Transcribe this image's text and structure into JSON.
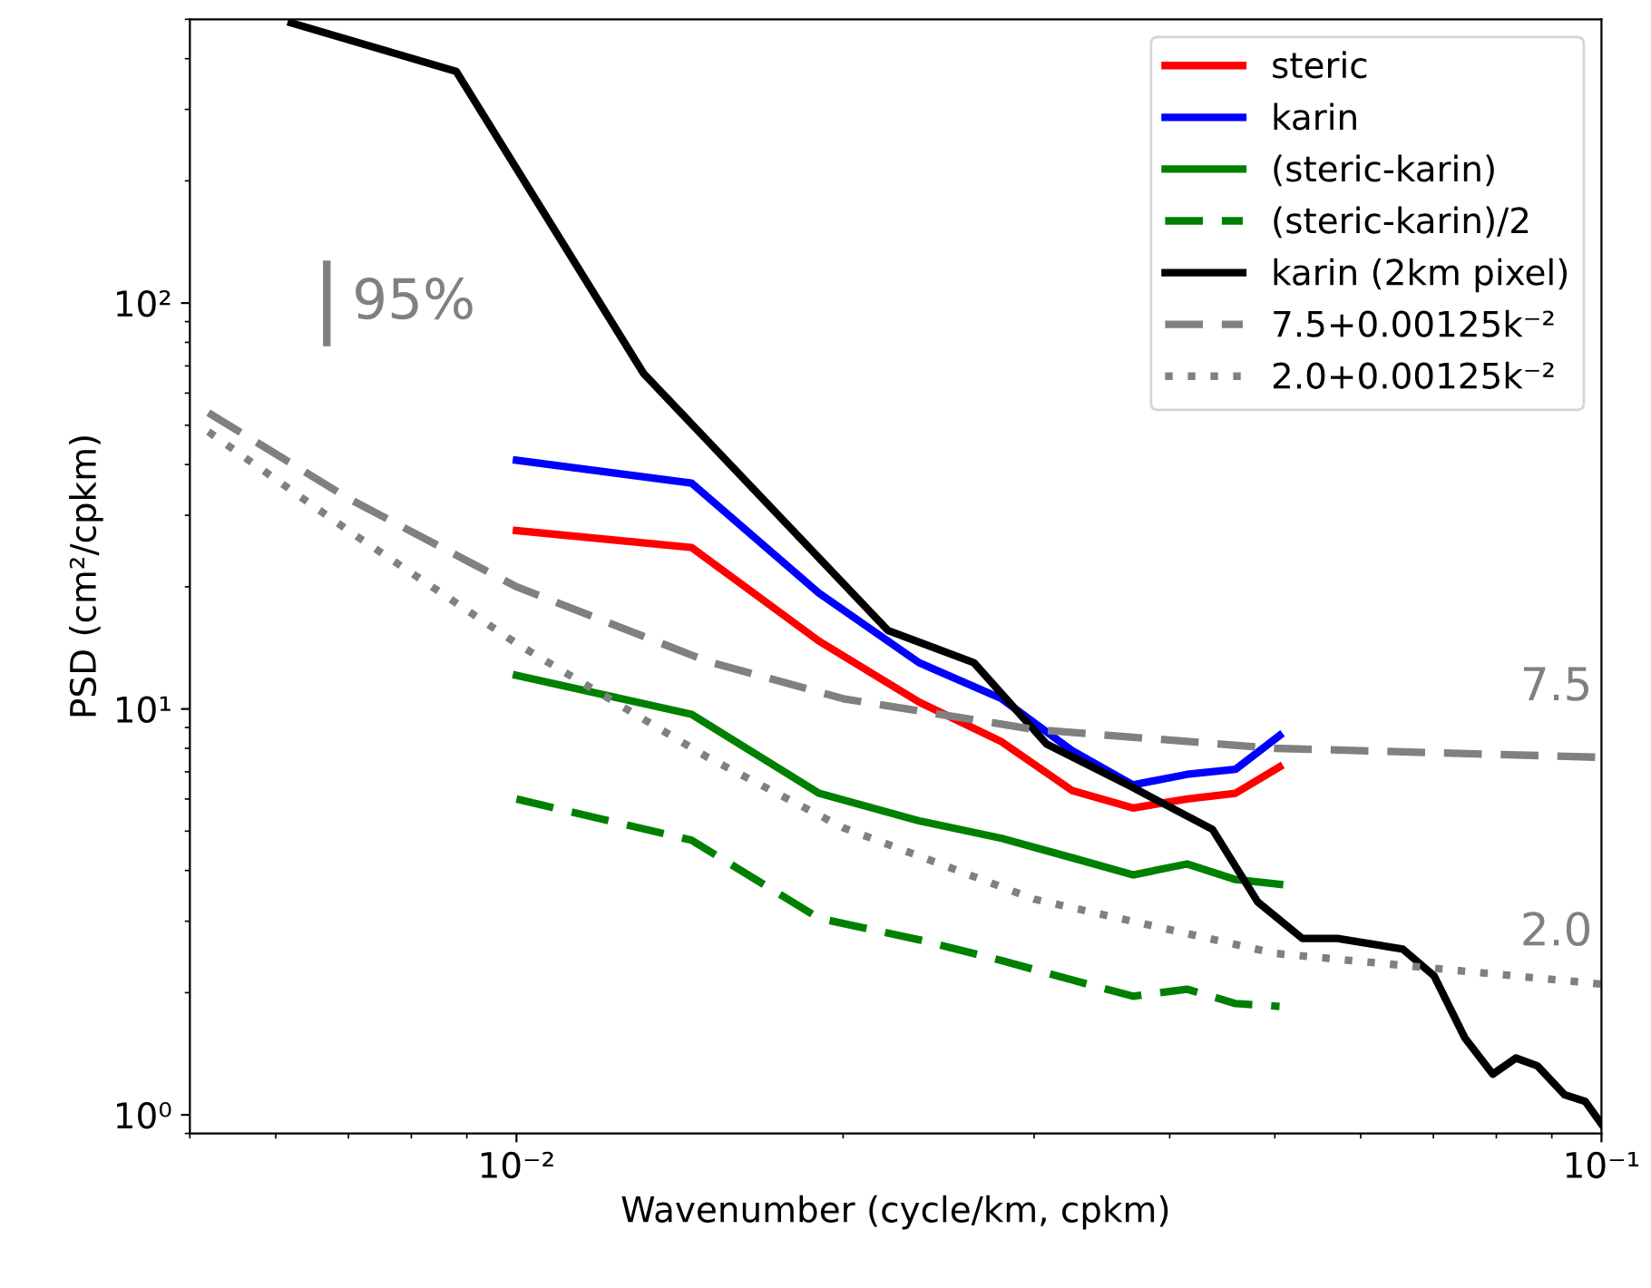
{
  "chart_data": {
    "type": "line",
    "xlabel": "Wavenumber (cycle/km, cpkm)",
    "ylabel": "PSD (cm²/cpkm)",
    "log": "xy",
    "xlim": [
      0.005,
      0.1
    ],
    "ylim": [
      0.9,
      500
    ],
    "xticks": [
      {
        "value": 0.01,
        "label": "10⁻²"
      },
      {
        "value": 0.1,
        "label": "10⁻¹"
      }
    ],
    "yticks": [
      {
        "value": 1,
        "label": "10⁰"
      },
      {
        "value": 10,
        "label": "10¹"
      },
      {
        "value": 100,
        "label": "10²"
      }
    ],
    "grid": false,
    "legend": "top right",
    "marker": "none",
    "series": [
      {
        "name": "steric",
        "color": "#ff0000",
        "line_style": "solid",
        "x": [
          0.01,
          0.0145,
          0.019,
          0.0235,
          0.028,
          0.0325,
          0.037,
          0.0415,
          0.046,
          0.0505
        ],
        "values": [
          27.5,
          25,
          14.7,
          10.4,
          8.3,
          6.3,
          5.7,
          6.0,
          6.2,
          7.2
        ]
      },
      {
        "name": "karin",
        "color": "#0000ff",
        "line_style": "solid",
        "x": [
          0.01,
          0.0145,
          0.019,
          0.0235,
          0.028,
          0.0325,
          0.037,
          0.0415,
          0.046,
          0.0505
        ],
        "values": [
          41,
          36,
          19.3,
          13,
          10.6,
          7.9,
          6.5,
          6.9,
          7.1,
          8.6
        ]
      },
      {
        "name": "(steric-karin)",
        "color": "#008000",
        "line_style": "solid",
        "x": [
          0.01,
          0.0145,
          0.019,
          0.0235,
          0.028,
          0.0325,
          0.037,
          0.0415,
          0.046,
          0.0505
        ],
        "values": [
          12.1,
          9.7,
          6.2,
          5.3,
          4.8,
          4.3,
          3.9,
          4.15,
          3.8,
          3.7
        ]
      },
      {
        "name": "(steric-karin)/2",
        "color": "#008000",
        "line_style": "dashed",
        "x": [
          0.01,
          0.0145,
          0.019,
          0.0235,
          0.028,
          0.0325,
          0.037,
          0.0415,
          0.046,
          0.0505
        ],
        "values": [
          6.0,
          4.75,
          3.05,
          2.7,
          2.4,
          2.15,
          1.96,
          2.04,
          1.88,
          1.85
        ]
      },
      {
        "name": "karin (2km pixel)",
        "color": "#000000",
        "line_style": "solid",
        "x": [
          0.0062,
          0.0088,
          0.0131,
          0.022,
          0.0264,
          0.0308,
          0.0368,
          0.0438,
          0.0482,
          0.053,
          0.0571,
          0.0656,
          0.0701,
          0.0748,
          0.0794,
          0.0834,
          0.0873,
          0.0925,
          0.0966,
          0.1
        ],
        "values": [
          490,
          372,
          67,
          15.6,
          13,
          8.2,
          6.45,
          5.05,
          3.35,
          2.72,
          2.72,
          2.56,
          2.2,
          1.55,
          1.26,
          1.38,
          1.32,
          1.12,
          1.08,
          0.95
        ]
      },
      {
        "name": "7.5+0.00125k⁻²",
        "color": "#808080",
        "line_style": "dashed",
        "x": [
          0.0052,
          0.007,
          0.01,
          0.015,
          0.02,
          0.03,
          0.05,
          0.1
        ],
        "values": [
          53.7,
          33,
          20,
          13.1,
          10.6,
          8.9,
          8.0,
          7.6
        ]
      },
      {
        "name": "2.0+0.00125k⁻²",
        "color": "#808080",
        "line_style": "dotted",
        "x": [
          0.0052,
          0.007,
          0.01,
          0.015,
          0.02,
          0.03,
          0.05,
          0.1
        ],
        "values": [
          48.2,
          27.5,
          14.5,
          7.6,
          5.1,
          3.4,
          2.5,
          2.1
        ]
      }
    ],
    "annotations": [
      "95%",
      "7.5",
      "2.0"
    ]
  }
}
